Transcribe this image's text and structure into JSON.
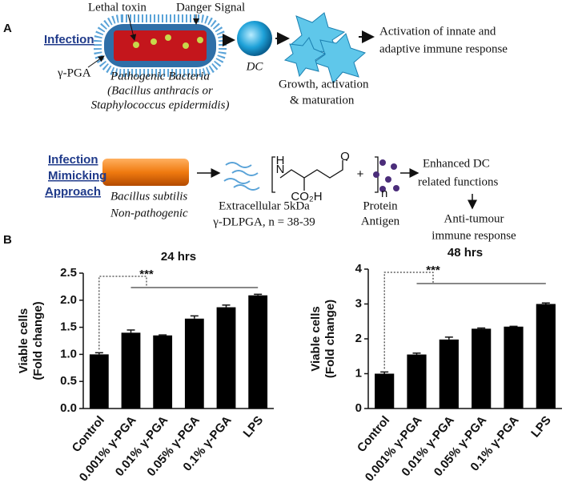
{
  "panel_a": {
    "label": "A",
    "texts": [
      "Infection",
      "Lethal toxin",
      "Danger Signal",
      "γ-PGA",
      "Pathogenic Bacteria",
      "(Bacillus anthracis or",
      "Staphylococcus epidermidis)",
      "DC",
      "Activation of innate and",
      "adaptive immune response",
      "Growth, activation",
      "& maturation",
      "Infection",
      "Mimicking",
      "Approach",
      "Bacillus subtilis",
      "Non-pathogenic",
      "H",
      "N",
      "O",
      "CO₂H",
      "n",
      "+",
      "Extracellular 5kDa",
      "γ-DLPGA, n = 38-39",
      "Protein",
      "Antigen",
      "Enhanced DC",
      "related functions",
      "Anti-tumour",
      "immune response"
    ]
  },
  "panel_b_label": "B",
  "chart_data": [
    {
      "type": "bar",
      "title": "24 hrs",
      "ylabel": [
        "Viable cells",
        "(Fold change)"
      ],
      "categories": [
        "Control",
        "0.001% γ-PGA",
        "0.01% γ-PGA",
        "0.05% γ-PGA",
        "0.1% γ-PGA",
        "LPS"
      ],
      "values": [
        1.0,
        1.4,
        1.35,
        1.66,
        1.87,
        2.09
      ],
      "errors": [
        0.03,
        0.05,
        0.01,
        0.05,
        0.04,
        0.02
      ],
      "color": "#000000",
      "ylim": [
        0,
        2.5
      ],
      "yticks": [
        {
          "value": 0,
          "label": "0.0"
        },
        0.5,
        {
          "value": 1,
          "label": "1.0"
        },
        1.5,
        {
          "value": 2,
          "label": "2.0"
        },
        2.5
      ],
      "annotation": "***"
    },
    {
      "type": "bar",
      "title": "48 hrs",
      "ylabel": [
        "Viable cells",
        "(Fold change)"
      ],
      "categories": [
        "Control",
        "0.001% γ-PGA",
        "0.01% γ-PGA",
        "0.05% γ-PGA",
        "0.1% γ-PGA",
        "LPS"
      ],
      "values": [
        1.0,
        1.55,
        1.98,
        2.29,
        2.35,
        3.0
      ],
      "errors": [
        0.05,
        0.04,
        0.07,
        0.02,
        0.01,
        0.03
      ],
      "color": "#000000",
      "ylim": [
        0,
        4
      ],
      "yticks": [
        0,
        1,
        2,
        3,
        4
      ],
      "annotation": "***"
    }
  ]
}
